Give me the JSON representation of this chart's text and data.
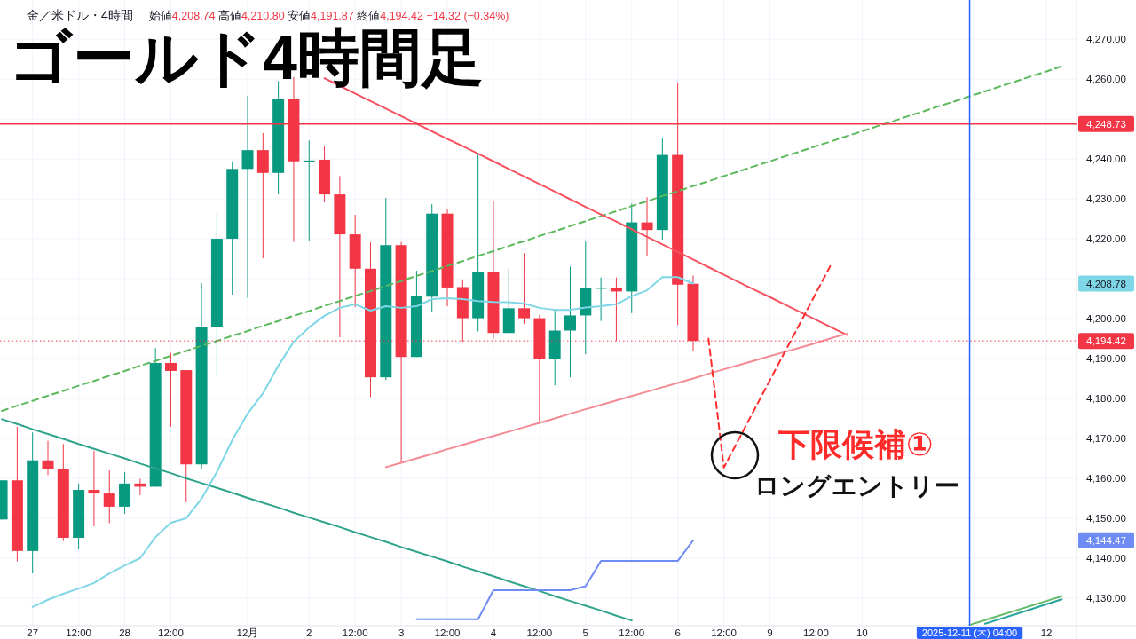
{
  "chart_data": {
    "type": "candlestick",
    "title": "ゴールド4時間足",
    "subtitle": "金／米ドル・4時間",
    "categories": [
      null,
      null,
      "27",
      null,
      null,
      "12:00",
      null,
      null,
      "28",
      null,
      null,
      "12:00",
      null,
      null,
      null,
      null,
      "12月",
      null,
      null,
      null,
      "2",
      null,
      null,
      "12:00",
      null,
      null,
      "3",
      null,
      null,
      "12:00",
      null,
      null,
      "4",
      null,
      null,
      "12:00",
      null,
      null,
      "5",
      null,
      null,
      "12:00",
      null,
      null,
      "6",
      null,
      null,
      "12:00",
      null,
      null,
      "9",
      null,
      null,
      "12:00",
      null,
      null,
      "10",
      null,
      null,
      null,
      null,
      null,
      null,
      "2025-12-11 (木) 04:00",
      null,
      null,
      null,
      null,
      "12",
      null
    ],
    "ohlc": [
      [
        4149.7,
        4159.5,
        4149.7,
        4159.5
      ],
      [
        4159.5,
        4172.9,
        4139.2,
        4141.8
      ],
      [
        4141.8,
        4171.5,
        4136.2,
        4164.5
      ],
      [
        4164.5,
        4169.4,
        4160.8,
        4162.4
      ],
      [
        4162.4,
        4168.6,
        4144.3,
        4145.1
      ],
      [
        4145.1,
        4158.7,
        4142.2,
        4157.1
      ],
      [
        4157.1,
        4166.9,
        4148.0,
        4156.2
      ],
      [
        4156.2,
        4162.0,
        4148.8,
        4152.9
      ],
      [
        4152.9,
        4161.6,
        4151.1,
        4158.7
      ],
      [
        4158.7,
        4159.9,
        4155.8,
        4157.9
      ],
      [
        4157.9,
        4192.6,
        4157.9,
        4188.9
      ],
      [
        4188.9,
        4191.4,
        4172.9,
        4186.9
      ],
      [
        4187.1,
        4187.1,
        4154.0,
        4163.5
      ],
      [
        4163.5,
        4208.9,
        4162.4,
        4197.8
      ],
      [
        4197.8,
        4226.4,
        4185.5,
        4220.0
      ],
      [
        4220.0,
        4239.4,
        4206.0,
        4237.5
      ],
      [
        4237.5,
        4255.8,
        4205.2,
        4242.2
      ],
      [
        4242.2,
        4246.5,
        4215.1,
        4236.5
      ],
      [
        4236.5,
        4259.5,
        4231.1,
        4255.0
      ],
      [
        4255.0,
        4260.5,
        4219.2,
        4239.4
      ],
      [
        4239.3,
        4244.6,
        4219.4,
        4239.6
      ],
      [
        4239.8,
        4243.2,
        4229.1,
        4231.1
      ],
      [
        4231.1,
        4235.7,
        4195.3,
        4221.1
      ],
      [
        4221.1,
        4226.0,
        4202.9,
        4212.5
      ],
      [
        4212.5,
        4219.1,
        4180.4,
        4185.3
      ],
      [
        4185.3,
        4230.2,
        4184.6,
        4218.4
      ],
      [
        4218.4,
        4219.2,
        4163.8,
        4190.4
      ],
      [
        4190.4,
        4212.0,
        4190.4,
        4205.6
      ],
      [
        4205.5,
        4228.7,
        4201.6,
        4226.3
      ],
      [
        4226.3,
        4227.3,
        4203.1,
        4207.8
      ],
      [
        4207.9,
        4209.8,
        4194.2,
        4200.1
      ],
      [
        4200.1,
        4241.1,
        4196.8,
        4211.6
      ],
      [
        4211.6,
        4229.4,
        4195.0,
        4196.4
      ],
      [
        4196.4,
        4212.5,
        4196.4,
        4202.6
      ],
      [
        4202.6,
        4216.4,
        4198.7,
        4200.1
      ],
      [
        4200.1,
        4200.9,
        4174.2,
        4189.8
      ],
      [
        4189.8,
        4202.4,
        4183.3,
        4197.0
      ],
      [
        4197.0,
        4213.0,
        4185.3,
        4200.8
      ],
      [
        4200.8,
        4219.3,
        4191.1,
        4207.7
      ],
      [
        4207.5,
        4210.3,
        4199.4,
        4207.7
      ],
      [
        4207.7,
        4210.3,
        4194.4,
        4206.8
      ],
      [
        4206.8,
        4228.8,
        4201.4,
        4224.1
      ],
      [
        4224.1,
        4230.4,
        4215.7,
        4222.2
      ],
      [
        4222.2,
        4245.3,
        4219.8,
        4241.0
      ],
      [
        4241.0,
        4258.9,
        4198.4,
        4208.5
      ],
      [
        4208.74,
        4210.8,
        4191.87,
        4194.42
      ],
      null,
      null,
      null,
      null,
      null,
      null,
      null,
      null,
      null,
      null,
      null,
      null,
      null,
      null,
      null,
      null,
      null,
      null,
      null,
      null,
      null,
      null,
      null,
      null
    ],
    "colors": [
      "#089981",
      "#f23645",
      "#089981",
      "#f23645",
      "#f23645",
      "#089981",
      "#f23645",
      "#f23645",
      "#089981",
      "#f23645",
      "#089981",
      "#f23645",
      "#f23645",
      "#089981",
      "#089981",
      "#089981",
      "#089981",
      "#f23645",
      "#089981",
      "#f23645",
      "#089981",
      "#f23645",
      "#f23645",
      "#f23645",
      "#f23645",
      "#089981",
      "#f23645",
      "#089981",
      "#089981",
      "#f23645",
      "#f23645",
      "#089981",
      "#f23645",
      "#089981",
      "#f23645",
      "#f23645",
      "#089981",
      "#089981",
      "#089981",
      "#089981",
      "#f23645",
      "#089981",
      "#f23645",
      "#089981",
      "#f23645",
      "#f23645",
      null,
      null,
      null,
      null,
      null,
      null,
      null,
      null,
      null,
      null,
      null,
      null,
      null,
      null,
      null,
      null,
      null,
      null,
      null,
      null,
      null,
      null,
      null,
      null
    ],
    "series": [
      {
        "type": "line",
        "color": "#5cb85c",
        "line_style": "dashed",
        "values": [
          4176.9,
          4178.2,
          4179.4,
          4180.7,
          4181.9,
          4183.2,
          4184.4,
          4185.7,
          4186.9,
          4188.2,
          4189.4,
          4190.7,
          4191.9,
          4193.2,
          4194.4,
          4195.7,
          4196.9,
          4198.2,
          4199.4,
          4200.7,
          4201.9,
          4203.2,
          4204.4,
          4205.7,
          4206.9,
          4208.2,
          4209.4,
          4210.7,
          4211.9,
          4213.2,
          4214.4,
          4215.7,
          4216.9,
          4218.2,
          4219.4,
          4220.7,
          4221.9,
          4223.2,
          4224.4,
          4225.7,
          4226.9,
          4228.2,
          4229.4,
          4230.7,
          4231.9,
          4233.2,
          4234.4,
          4235.7,
          4236.9,
          4238.2,
          4239.4,
          4240.7,
          4241.9,
          4243.2,
          4244.4,
          4245.7,
          4246.9,
          4248.2,
          4249.4,
          4250.7,
          4251.9,
          4253.2,
          4254.4,
          4255.7,
          4256.9,
          4258.2,
          4259.4,
          4260.7,
          4261.9,
          4263.2
        ]
      },
      {
        "type": "line",
        "color": "#2fa38c",
        "values": [
          4174.8,
          4173.6,
          4172.3,
          4171.1,
          4169.9,
          4168.6,
          4167.4,
          4166.2,
          4165.0,
          4163.7,
          4162.5,
          4161.3,
          4160.0,
          4158.8,
          4157.6,
          4156.4,
          4155.1,
          4153.9,
          4152.7,
          4151.4,
          4150.2,
          4149.0,
          4147.8,
          4146.5,
          4145.3,
          4144.1,
          4142.8,
          4141.6,
          4140.4,
          4139.2,
          4137.9,
          4136.7,
          4135.5,
          4134.2,
          4133.0,
          4131.8,
          4130.5,
          4129.3,
          4128.1,
          4126.9,
          4125.6,
          4124.4,
          null,
          null,
          null,
          null,
          null,
          null,
          null,
          null,
          null,
          null,
          null,
          null,
          null,
          null,
          null,
          null,
          null,
          null,
          null,
          null,
          null,
          null,
          null,
          null,
          null,
          null,
          null,
          null
        ]
      },
      {
        "type": "line",
        "color": "#66bb6a",
        "values": [
          null,
          null,
          null,
          null,
          null,
          null,
          null,
          null,
          null,
          null,
          null,
          null,
          null,
          null,
          null,
          null,
          null,
          null,
          null,
          null,
          null,
          null,
          null,
          null,
          null,
          null,
          null,
          null,
          null,
          null,
          null,
          null,
          null,
          null,
          null,
          null,
          null,
          null,
          null,
          null,
          null,
          null,
          null,
          null,
          null,
          null,
          null,
          null,
          null,
          null,
          null,
          null,
          null,
          null,
          null,
          null,
          null,
          null,
          null,
          null,
          null,
          null,
          null,
          4123.3,
          4124.5,
          4125.7,
          4126.9,
          4128.1,
          4129.3,
          4130.5
        ]
      },
      {
        "type": "line",
        "color": "#26a69a",
        "values": [
          null,
          null,
          null,
          null,
          null,
          null,
          null,
          null,
          null,
          null,
          null,
          null,
          null,
          null,
          null,
          null,
          null,
          null,
          null,
          null,
          null,
          null,
          null,
          null,
          null,
          null,
          null,
          null,
          null,
          null,
          null,
          null,
          null,
          null,
          null,
          null,
          null,
          null,
          null,
          null,
          null,
          null,
          null,
          null,
          null,
          null,
          null,
          null,
          null,
          null,
          null,
          null,
          null,
          null,
          null,
          null,
          null,
          null,
          null,
          null,
          null,
          null,
          null,
          null,
          4123.6,
          4124.8,
          4126.0,
          4127.2,
          4128.5,
          4129.7
        ]
      },
      {
        "type": "line",
        "color": "#f7525f",
        "values": [
          null,
          null,
          null,
          null,
          null,
          null,
          null,
          null,
          null,
          null,
          null,
          null,
          null,
          null,
          null,
          null,
          null,
          null,
          null,
          null,
          null,
          4260.2,
          4258.3,
          4256.4,
          4254.5,
          4252.6,
          4250.7,
          4248.8,
          4246.9,
          4245.0,
          4243.2,
          4241.3,
          4239.4,
          4237.5,
          4235.6,
          4233.7,
          4231.8,
          4229.9,
          4228.0,
          4226.1,
          4224.3,
          4222.4,
          4220.5,
          4218.6,
          4216.7,
          4214.8,
          4212.9,
          4211.0,
          4209.1,
          4207.2,
          4205.4,
          4203.5,
          4201.6,
          4199.7,
          4197.8,
          4195.9,
          null,
          null,
          null,
          null,
          null,
          null,
          null,
          null,
          null,
          null,
          null,
          null,
          null,
          null
        ]
      },
      {
        "type": "line",
        "color": "#f48a94",
        "values": [
          null,
          null,
          null,
          null,
          null,
          null,
          null,
          null,
          null,
          null,
          null,
          null,
          null,
          null,
          null,
          null,
          null,
          null,
          null,
          null,
          null,
          null,
          null,
          null,
          null,
          4162.8,
          4163.9,
          4165.0,
          4166.1,
          4167.3,
          4168.4,
          4169.5,
          4170.6,
          4171.7,
          4172.8,
          4173.9,
          4175.0,
          4176.2,
          4177.3,
          4178.4,
          4179.5,
          4180.6,
          4181.7,
          4182.8,
          4183.9,
          4185.0,
          4186.2,
          4187.3,
          4188.4,
          4189.5,
          4190.6,
          4191.7,
          4192.8,
          4193.9,
          4195.1,
          4196.2,
          null,
          null,
          null,
          null,
          null,
          null,
          null,
          null,
          null,
          null,
          null,
          null,
          null,
          null
        ]
      },
      {
        "type": "line",
        "color": "#ff2d2d",
        "line_style": "dashed",
        "values": [
          null,
          null,
          null,
          null,
          null,
          null,
          null,
          null,
          null,
          null,
          null,
          null,
          null,
          null,
          null,
          null,
          null,
          null,
          null,
          null,
          null,
          null,
          null,
          null,
          null,
          null,
          null,
          null,
          null,
          null,
          null,
          null,
          null,
          null,
          null,
          null,
          null,
          null,
          null,
          null,
          null,
          null,
          null,
          null,
          null,
          null,
          4195.0,
          4162.7,
          4170.0,
          4177.3,
          4184.6,
          4191.9,
          4199.1,
          4206.4,
          4213.7,
          null,
          null,
          null,
          null,
          null,
          null,
          null,
          null,
          null,
          null,
          null,
          null,
          null,
          null,
          null
        ]
      },
      {
        "type": "line",
        "color": "#6f8cf5",
        "values": [
          null,
          null,
          null,
          null,
          null,
          null,
          null,
          null,
          null,
          null,
          null,
          null,
          null,
          null,
          null,
          null,
          null,
          null,
          null,
          null,
          null,
          null,
          null,
          null,
          null,
          null,
          null,
          4124.7,
          4124.7,
          4124.7,
          4124.7,
          4124.7,
          4132.0,
          4132.0,
          4132.0,
          4132.0,
          4132.0,
          4132.0,
          4133.0,
          4139.3,
          4139.3,
          4139.3,
          4139.3,
          4139.3,
          4139.3,
          4144.47,
          null,
          null,
          null,
          null,
          null,
          null,
          null,
          null,
          null,
          null,
          null,
          null,
          null,
          null,
          null,
          null,
          null,
          null,
          null,
          null,
          null,
          null,
          null,
          null
        ]
      },
      {
        "type": "line",
        "color": "#7fd6e6",
        "values": [
          null,
          null,
          4127.8,
          4129.6,
          4131.1,
          4132.4,
          4133.8,
          4136.2,
          4138.2,
          4140.0,
          4145.3,
          4148.9,
          4150.0,
          4154.9,
          4161.6,
          4169.6,
          4176.2,
          4181.3,
          4188.2,
          4194.2,
          4197.8,
          4200.7,
          4202.7,
          4203.6,
          4202.0,
          4203.1,
          4202.7,
          4203.1,
          4204.9,
          4205.1,
          4204.9,
          4204.4,
          4204.2,
          4204.1,
          4203.8,
          4202.7,
          4202.2,
          4202.2,
          4202.8,
          4203.1,
          4203.6,
          4205.6,
          4207.1,
          4210.4,
          4210.4,
          4208.78,
          null,
          null,
          null,
          null,
          null,
          null,
          null,
          null,
          null,
          null,
          null,
          null,
          null,
          null,
          null,
          null,
          null,
          null,
          null,
          null,
          null,
          null,
          null,
          null
        ]
      }
    ],
    "ylim": [
      4123.1,
      4279.8
    ],
    "yticks": [
      {
        "value": 4130,
        "label": "4,130.00"
      },
      {
        "value": 4140,
        "label": "4,140.00"
      },
      {
        "value": 4150,
        "label": "4,150.00"
      },
      {
        "value": 4160,
        "label": "4,160.00"
      },
      {
        "value": 4170,
        "label": "4,170.00"
      },
      {
        "value": 4180,
        "label": "4,180.00"
      },
      {
        "value": 4190,
        "label": "4,190.00"
      },
      {
        "value": 4200,
        "label": "4,200.00"
      },
      {
        "value": 4210,
        "label": null
      },
      {
        "value": 4220,
        "label": "4,220.00"
      },
      {
        "value": 4230,
        "label": "4,230.00"
      },
      {
        "value": 4240,
        "label": "4,240.00"
      },
      {
        "value": 4250,
        "label": null
      },
      {
        "value": 4260,
        "label": "4,260.00"
      },
      {
        "value": 4270,
        "label": "4,270.00"
      }
    ],
    "grid": true,
    "ref_lines": [
      {
        "axis": "y",
        "value": 4248.73,
        "label": "4,248.73",
        "color": "#f23645"
      },
      {
        "axis": "y",
        "value": 4194.42,
        "label": "4,194.42",
        "color": "#f23645",
        "line_style": "dotted"
      },
      {
        "axis": "x",
        "value": "2025-12-11 (木) 04:00",
        "color": "#2962ff"
      }
    ],
    "annotations": [
      "始値4,208.74 高値4,210.80 安値4,191.87 終値4,194.42 −14.32 (−0.34%)",
      "4,208.78",
      "4,144.47",
      "下限候補①",
      "ロングエントリー"
    ]
  }
}
